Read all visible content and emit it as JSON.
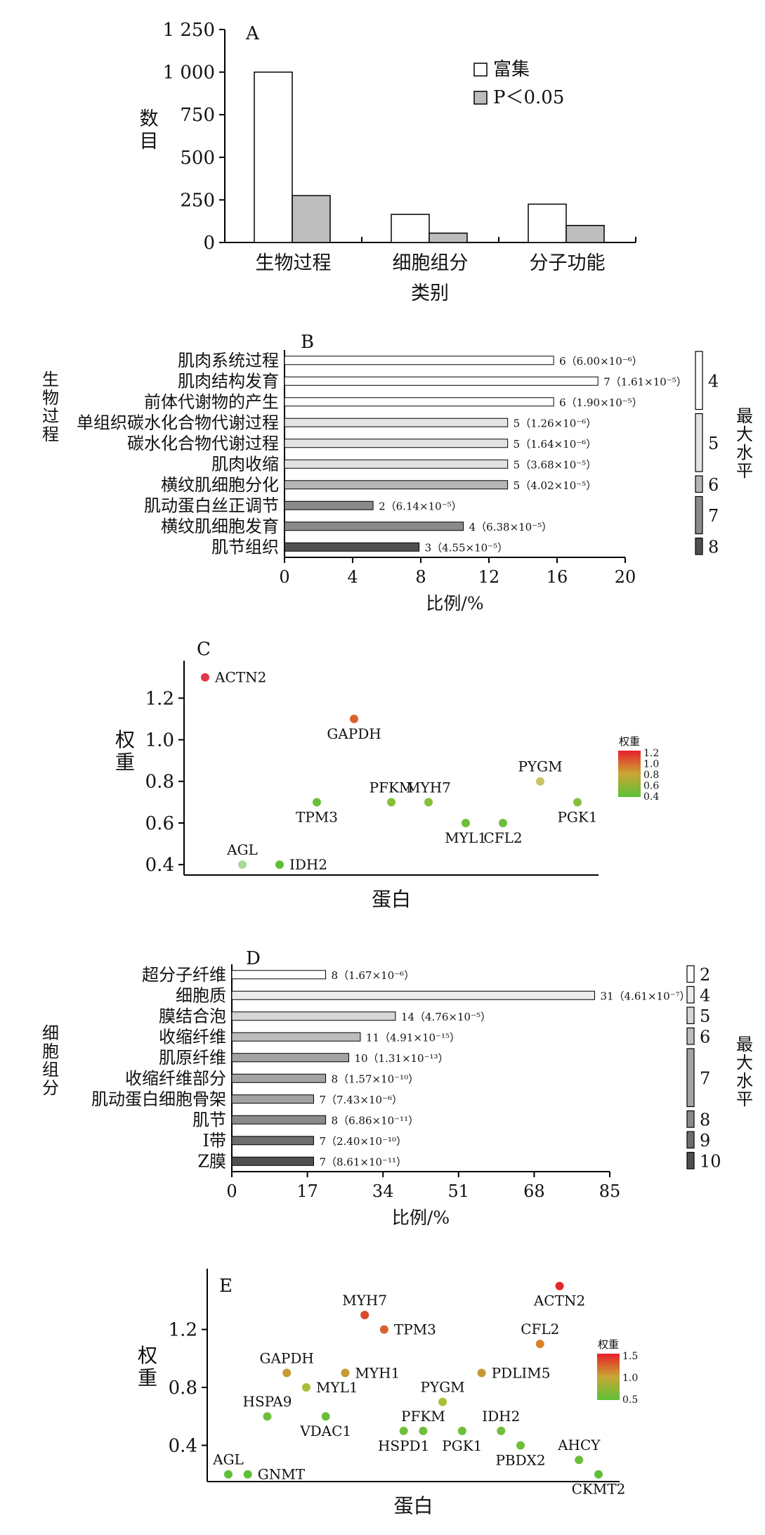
{
  "chart_data": [
    {
      "panel": "A",
      "type": "bar",
      "ylabel": "数目",
      "xlabel": "类别",
      "categories": [
        "生物过程",
        "细胞组分",
        "分子功能"
      ],
      "yticks": [
        "0",
        "250",
        "500",
        "750",
        "1 000",
        "1 250"
      ],
      "ylim": [
        0,
        1250
      ],
      "series": [
        {
          "name": "富集",
          "values": [
            1000,
            165,
            225
          ],
          "color": "#ffffff"
        },
        {
          "name": "P＜0.05",
          "values": [
            275,
            55,
            100
          ],
          "color": "#bdbdbd"
        }
      ],
      "legend_position": "top-right"
    },
    {
      "panel": "B",
      "type": "bar",
      "orientation": "horizontal",
      "ylabel": "生物过程",
      "xlabel": "比例/%",
      "xticks": [
        "0",
        "4",
        "8",
        "12",
        "16",
        "20"
      ],
      "xlim": [
        0,
        20
      ],
      "categories": [
        "肌肉系统过程",
        "肌肉结构发育",
        "前体代谢物的产生",
        "单组织碳水化合物代谢过程",
        "碳水化合物代谢过程",
        "肌肉收缩",
        "横纹肌细胞分化",
        "肌动蛋白丝正调节",
        "横纹肌细胞发育",
        "肌节组织"
      ],
      "values": [
        15.8,
        18.4,
        15.8,
        13.1,
        13.1,
        13.1,
        13.1,
        5.2,
        10.5,
        7.9
      ],
      "labels": [
        "6（6.00×10⁻⁶）",
        "7（1.61×10⁻⁵）",
        "6（1.90×10⁻⁵）",
        "5（1.26×10⁻⁶）",
        "5（1.64×10⁻⁶）",
        "5（3.68×10⁻⁵）",
        "5（4.02×10⁻⁵）",
        "2（6.14×10⁻⁵）",
        "4（6.38×10⁻⁵）",
        "3（4.55×10⁻⁵）"
      ],
      "levels": [
        4,
        4,
        4,
        5,
        5,
        5,
        6,
        7,
        7,
        8
      ],
      "legend_title": "最大水平",
      "legend": [
        {
          "level": "4",
          "count": 3,
          "color": "#ffffff"
        },
        {
          "level": "5",
          "count": 3,
          "color": "#e3e3e3"
        },
        {
          "level": "6",
          "count": 1,
          "color": "#b5b5b5"
        },
        {
          "level": "7",
          "count": 2,
          "color": "#8a8a8a"
        },
        {
          "level": "8",
          "count": 1,
          "color": "#4f4f4f"
        }
      ]
    },
    {
      "panel": "C",
      "type": "scatter",
      "ylabel": "权重",
      "xlabel": "蛋白",
      "yticks": [
        "0.4",
        "0.6",
        "0.8",
        "1.0",
        "1.2"
      ],
      "ylim": [
        0.35,
        1.38
      ],
      "points": [
        {
          "label": "ACTN2",
          "x": 1,
          "y": 1.3,
          "color": "#e0384a",
          "pos": "right"
        },
        {
          "label": "GAPDH",
          "x": 5,
          "y": 1.1,
          "color": "#d9622b",
          "pos": "below"
        },
        {
          "label": "TPM3",
          "x": 4,
          "y": 0.7,
          "color": "#6dbf3a",
          "pos": "below"
        },
        {
          "label": "PFKM",
          "x": 6,
          "y": 0.7,
          "color": "#86bf3a",
          "pos": "above"
        },
        {
          "label": "MYH7",
          "x": 7,
          "y": 0.7,
          "color": "#86bf3a",
          "pos": "above"
        },
        {
          "label": "MYL1",
          "x": 8,
          "y": 0.6,
          "color": "#6dbf3a",
          "pos": "below"
        },
        {
          "label": "CFL2",
          "x": 9,
          "y": 0.6,
          "color": "#6dbf3a",
          "pos": "below"
        },
        {
          "label": "PYGM",
          "x": 10,
          "y": 0.8,
          "color": "#c7c466",
          "pos": "above"
        },
        {
          "label": "PGK1",
          "x": 11,
          "y": 0.7,
          "color": "#86bf3a",
          "pos": "below"
        },
        {
          "label": "AGL",
          "x": 2,
          "y": 0.4,
          "color": "#a6d99a",
          "pos": "above"
        },
        {
          "label": "IDH2",
          "x": 3,
          "y": 0.4,
          "color": "#5cc037",
          "pos": "right"
        }
      ],
      "colorbar": {
        "title": "权重",
        "ticks": [
          "1.2",
          "1.0",
          "0.8",
          "0.6",
          "0.4"
        ]
      }
    },
    {
      "panel": "D",
      "type": "bar",
      "orientation": "horizontal",
      "ylabel": "细胞组分",
      "xlabel": "比例/%",
      "xticks": [
        "0",
        "17",
        "34",
        "51",
        "68",
        "85"
      ],
      "xlim": [
        0,
        85
      ],
      "categories": [
        "超分子纤维",
        "细胞质",
        "膜结合泡",
        "收缩纤维",
        "肌原纤维",
        "收缩纤维部分",
        "肌动蛋白细胞骨架",
        "肌节",
        "I带",
        "Z膜"
      ],
      "values": [
        21.1,
        81.6,
        36.8,
        28.9,
        26.3,
        21.1,
        18.4,
        21.1,
        18.4,
        18.4
      ],
      "labels": [
        "8（1.67×10⁻⁶）",
        "31（4.61×10⁻⁷）",
        "14（4.76×10⁻⁵）",
        "11（4.91×10⁻¹⁵）",
        "10（1.31×10⁻¹³）",
        "8（1.57×10⁻¹⁰）",
        "7（7.43×10⁻⁶）",
        "8（6.86×10⁻¹¹）",
        "7（2.40×10⁻¹⁰）",
        "7（8.61×10⁻¹¹）"
      ],
      "levels": [
        2,
        4,
        5,
        6,
        7,
        7,
        7,
        8,
        9,
        10
      ],
      "legend_title": "最大水平",
      "legend": [
        {
          "level": "2",
          "count": 1,
          "color": "#ffffff"
        },
        {
          "level": "4",
          "count": 1,
          "color": "#ececec"
        },
        {
          "level": "5",
          "count": 1,
          "color": "#d6d6d6"
        },
        {
          "level": "6",
          "count": 1,
          "color": "#bdbdbd"
        },
        {
          "level": "7",
          "count": 3,
          "color": "#a3a3a3"
        },
        {
          "level": "8",
          "count": 1,
          "color": "#8a8a8a"
        },
        {
          "level": "9",
          "count": 1,
          "color": "#6e6e6e"
        },
        {
          "level": "10",
          "count": 1,
          "color": "#505050"
        }
      ]
    },
    {
      "panel": "E",
      "type": "scatter",
      "ylabel": "权重",
      "xlabel": "蛋白",
      "yticks": [
        "0.4",
        "0.8",
        "1.2"
      ],
      "ylim": [
        0.15,
        1.62
      ],
      "points": [
        {
          "label": "AGL",
          "x": 1,
          "y": 0.2,
          "color": "#5cc037",
          "pos": "above"
        },
        {
          "label": "GNMT",
          "x": 2,
          "y": 0.2,
          "color": "#5cc037",
          "pos": "right"
        },
        {
          "label": "HSPA9",
          "x": 3,
          "y": 0.6,
          "color": "#6dbf3a",
          "pos": "above"
        },
        {
          "label": "GAPDH",
          "x": 4,
          "y": 0.9,
          "color": "#c49a32",
          "pos": "above"
        },
        {
          "label": "MYL1",
          "x": 5,
          "y": 0.8,
          "color": "#a9bf3a",
          "pos": "right"
        },
        {
          "label": "VDAC1",
          "x": 6,
          "y": 0.6,
          "color": "#6dbf3a",
          "pos": "below"
        },
        {
          "label": "MYH1",
          "x": 7,
          "y": 0.9,
          "color": "#c49a32",
          "pos": "right"
        },
        {
          "label": "MYH7",
          "x": 8,
          "y": 1.3,
          "color": "#d94a2b",
          "pos": "above"
        },
        {
          "label": "TPM3",
          "x": 9,
          "y": 1.2,
          "color": "#d9622b",
          "pos": "right"
        },
        {
          "label": "HSPD1",
          "x": 10,
          "y": 0.5,
          "color": "#6dbf3a",
          "pos": "below"
        },
        {
          "label": "PFKM",
          "x": 11,
          "y": 0.5,
          "color": "#6dbf3a",
          "pos": "above"
        },
        {
          "label": "PYGM",
          "x": 12,
          "y": 0.7,
          "color": "#a9bf3a",
          "pos": "above"
        },
        {
          "label": "PGK1",
          "x": 13,
          "y": 0.5,
          "color": "#6dbf3a",
          "pos": "below"
        },
        {
          "label": "PDLIM5",
          "x": 14,
          "y": 0.9,
          "color": "#c49a32",
          "pos": "right"
        },
        {
          "label": "IDH2",
          "x": 15,
          "y": 0.5,
          "color": "#6dbf3a",
          "pos": "above"
        },
        {
          "label": "PBDX2",
          "x": 16,
          "y": 0.4,
          "color": "#6dbf3a",
          "pos": "below"
        },
        {
          "label": "CFL2",
          "x": 17,
          "y": 1.1,
          "color": "#d9822b",
          "pos": "above"
        },
        {
          "label": "ACTN2",
          "x": 18,
          "y": 1.5,
          "color": "#e02a2a",
          "pos": "below"
        },
        {
          "label": "AHCY",
          "x": 19,
          "y": 0.3,
          "color": "#6dbf3a",
          "pos": "above"
        },
        {
          "label": "CKMT2",
          "x": 20,
          "y": 0.2,
          "color": "#5cc037",
          "pos": "below"
        }
      ],
      "colorbar": {
        "title": "权重",
        "ticks": [
          "1.5",
          "1.0",
          "0.5"
        ]
      }
    }
  ]
}
